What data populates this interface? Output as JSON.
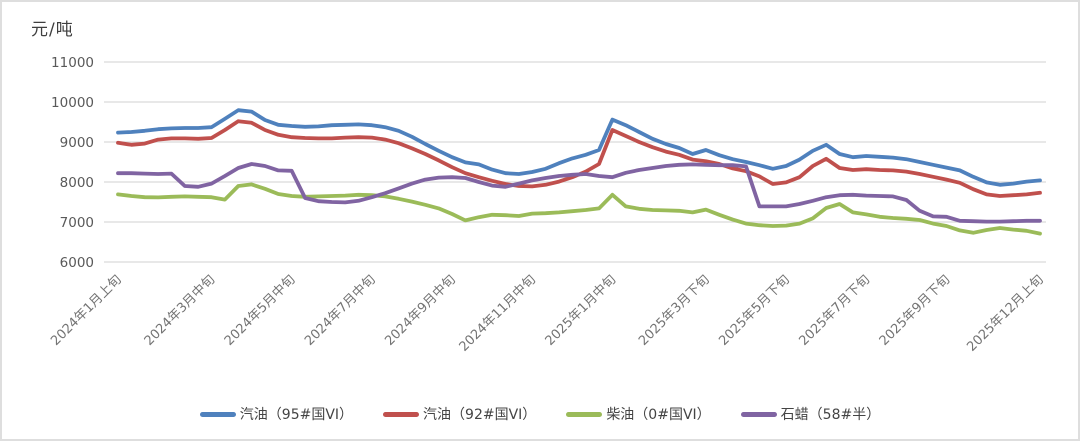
{
  "chart_data": {
    "type": "line",
    "title": "",
    "ylabel": "元/吨",
    "xlabel": "",
    "ylim": [
      6000,
      11000
    ],
    "y_ticks": [
      11000,
      10000,
      9000,
      8000,
      7000,
      6000
    ],
    "grid": true,
    "legend_position": "bottom",
    "n_points": 70,
    "x_tick_labels": [
      "2024年1月上旬",
      "2024年3月中旬",
      "2024年5月中旬",
      "2024年7月中旬",
      "2024年9月中旬",
      "2024年11月中旬",
      "2025年1月中旬",
      "2025年3月下旬",
      "2025年5月下旬",
      "2025年7月下旬",
      "2025年9月下旬",
      "2025年12月上旬"
    ],
    "x_tick_indices": [
      0,
      7,
      13,
      19,
      25,
      31,
      37,
      44,
      50,
      56,
      62,
      69
    ],
    "colors": {
      "gasoline95": "#4F81BD",
      "gasoline92": "#C0504D",
      "diesel0": "#9BBB59",
      "paraffin58": "#8064A2",
      "gridline": "#D9D9D9",
      "axis_text": "#595959"
    },
    "series": [
      {
        "name": "汽油（95#国VI）",
        "color": "#4F81BD",
        "values": [
          9235,
          9250,
          9280,
          9320,
          9340,
          9350,
          9350,
          9370,
          9580,
          9795,
          9760,
          9550,
          9430,
          9400,
          9380,
          9390,
          9420,
          9430,
          9440,
          9420,
          9370,
          9280,
          9130,
          8950,
          8780,
          8620,
          8490,
          8440,
          8310,
          8220,
          8200,
          8250,
          8330,
          8470,
          8590,
          8680,
          8800,
          9560,
          9420,
          9250,
          9080,
          8950,
          8850,
          8700,
          8800,
          8670,
          8570,
          8500,
          8420,
          8330,
          8400,
          8560,
          8780,
          8930,
          8700,
          8620,
          8650,
          8630,
          8610,
          8570,
          8500,
          8430,
          8360,
          8290,
          8130,
          7990,
          7930,
          7960,
          8010,
          8040
        ]
      },
      {
        "name": "汽油（92#国VI）",
        "color": "#C0504D",
        "values": [
          8980,
          8930,
          8960,
          9060,
          9090,
          9090,
          9080,
          9100,
          9300,
          9520,
          9480,
          9300,
          9180,
          9120,
          9100,
          9090,
          9090,
          9110,
          9120,
          9110,
          9060,
          8970,
          8840,
          8700,
          8540,
          8370,
          8220,
          8120,
          8030,
          7950,
          7900,
          7890,
          7930,
          8010,
          8120,
          8260,
          8450,
          9300,
          9150,
          9000,
          8870,
          8760,
          8680,
          8560,
          8520,
          8450,
          8340,
          8270,
          8140,
          7950,
          7990,
          8120,
          8400,
          8580,
          8350,
          8300,
          8320,
          8300,
          8290,
          8260,
          8200,
          8130,
          8060,
          7980,
          7820,
          7690,
          7650,
          7670,
          7690,
          7730
        ]
      },
      {
        "name": "柴油（0#国VI）",
        "color": "#9BBB59",
        "values": [
          7690,
          7650,
          7620,
          7615,
          7630,
          7640,
          7630,
          7620,
          7560,
          7900,
          7940,
          7830,
          7700,
          7650,
          7630,
          7640,
          7650,
          7660,
          7680,
          7670,
          7640,
          7580,
          7510,
          7430,
          7340,
          7200,
          7040,
          7120,
          7180,
          7170,
          7150,
          7210,
          7220,
          7240,
          7270,
          7300,
          7340,
          7680,
          7390,
          7330,
          7300,
          7290,
          7280,
          7240,
          7310,
          7180,
          7060,
          6960,
          6920,
          6900,
          6910,
          6960,
          7090,
          7350,
          7450,
          7240,
          7190,
          7130,
          7100,
          7080,
          7050,
          6960,
          6900,
          6790,
          6730,
          6800,
          6850,
          6810,
          6780,
          6710
        ]
      },
      {
        "name": "石蜡（58#半）",
        "color": "#8064A2",
        "values": [
          8220,
          8220,
          8210,
          8200,
          8210,
          7900,
          7880,
          7960,
          8150,
          8350,
          8450,
          8400,
          8290,
          8280,
          7600,
          7520,
          7500,
          7490,
          7530,
          7620,
          7720,
          7840,
          7960,
          8060,
          8110,
          8120,
          8100,
          8000,
          7910,
          7880,
          7960,
          8040,
          8100,
          8150,
          8180,
          8200,
          8150,
          8120,
          8230,
          8300,
          8350,
          8400,
          8430,
          8440,
          8430,
          8420,
          8420,
          8390,
          7390,
          7390,
          7390,
          7450,
          7530,
          7620,
          7670,
          7680,
          7660,
          7650,
          7640,
          7550,
          7280,
          7140,
          7130,
          7030,
          7020,
          7010,
          7010,
          7020,
          7030,
          7030
        ]
      }
    ]
  }
}
